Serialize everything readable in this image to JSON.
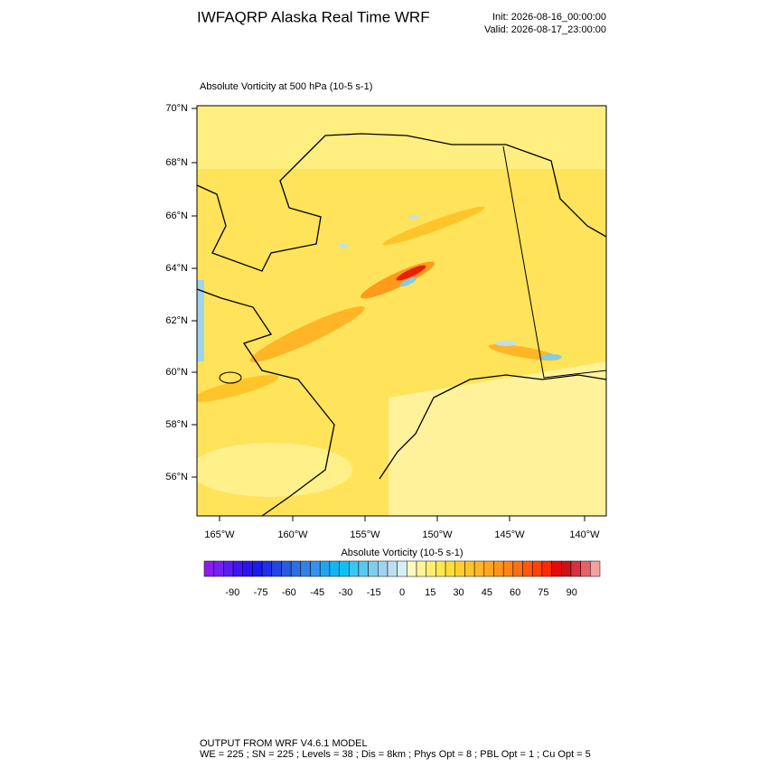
{
  "header": {
    "title": "IWFAQRP Alaska Real Time WRF",
    "init": "Init: 2026-08-16_00:00:00",
    "valid": "Valid: 2026-08-17_23:00:00"
  },
  "map": {
    "label": "Absolute Vorticity at 500 hPa   (10-5 s-1)",
    "lat_labels": [
      "70°N",
      "68°N",
      "66°N",
      "64°N",
      "62°N",
      "60°N",
      "58°N",
      "56°N"
    ],
    "lon_labels": [
      "165°W",
      "160°W",
      "155°W",
      "150°W",
      "145°W",
      "140°W"
    ]
  },
  "colorbar": {
    "title": "Absolute Vorticity  (10-5 s-1)",
    "range": [
      -105,
      105
    ],
    "ticks": [
      -90,
      -75,
      -60,
      -45,
      -30,
      -15,
      0,
      15,
      30,
      45,
      60,
      75,
      90
    ],
    "colors": [
      "#8C1CE8",
      "#7420EE",
      "#5A1CF2",
      "#3F14F5",
      "#2A12F8",
      "#1A1AF0",
      "#1F2EE8",
      "#2445E2",
      "#2A5BDC",
      "#2F6EE0",
      "#3281E6",
      "#3393EC",
      "#24A4F0",
      "#12B5F4",
      "#10C0F2",
      "#3BC5F0",
      "#5AC9EE",
      "#7DCDEC",
      "#9ED5EE",
      "#BDE0F0",
      "#D6EEF6",
      "#FFFAC0",
      "#FFF59A",
      "#FFEE70",
      "#FFE84F",
      "#FFDD3A",
      "#FFD030",
      "#FFC42A",
      "#FFB526",
      "#FFA620",
      "#FF961A",
      "#FF8515",
      "#FF7010",
      "#FF5A0C",
      "#FF4208",
      "#FF2A05",
      "#E80A0A",
      "#CC1218",
      "#D83040",
      "#E86068",
      "#F4A0A2"
    ]
  },
  "footer": {
    "line1": "OUTPUT FROM WRF V4.6.1 MODEL",
    "line2": "WE = 225 ; SN = 225 ; Levels = 38 ; Dis = 8km ; Phys Opt = 8 ; PBL Opt = 1 ; Cu Opt = 5"
  }
}
